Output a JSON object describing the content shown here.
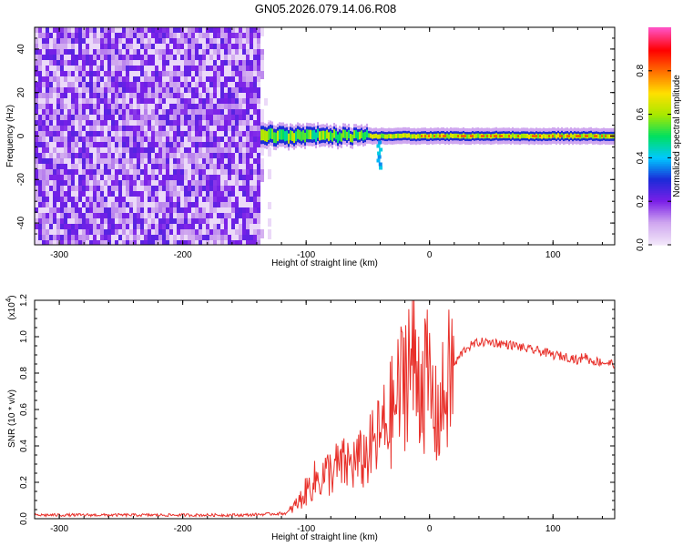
{
  "title": "GN05.2026.079.14.06.R08",
  "chart_data": [
    {
      "type": "heatmap",
      "xlabel": "Height of straight line (km)",
      "ylabel": "Frequency (Hz)",
      "xlim": [
        -320,
        150
      ],
      "ylim": [
        -50,
        50
      ],
      "xticks": [
        -300,
        -200,
        -100,
        0,
        100
      ],
      "yticks": [
        -40,
        -20,
        0,
        20,
        40
      ],
      "colorbar": {
        "label": "Normalized spectral amplitude",
        "range": [
          0,
          1
        ],
        "ticks": [
          0.0,
          0.2,
          0.4,
          0.6,
          0.8
        ],
        "tick_labels": [
          "0.0",
          "0.2",
          "0.4",
          "0.6",
          "0.8"
        ],
        "colormap": [
          "#f2e6fa",
          "#cfa6ef",
          "#7a1fe8",
          "#1b2bd8",
          "#00c8ff",
          "#00e060",
          "#a8e800",
          "#ffe000",
          "#ff7000",
          "#ff0000",
          "#ff50c0"
        ]
      },
      "regions": [
        {
          "x": [
            -320,
            -137
          ],
          "description_level": 0.1
        },
        {
          "x": [
            -137,
            150
          ],
          "ridge_frequency_hz": 0,
          "ridge_level": 0.55
        }
      ]
    },
    {
      "type": "line",
      "xlabel": "Height of straight line (km)",
      "ylabel": "SNR (10 * v/v)",
      "multiplier": "(x10",
      "multiplier_exp": "4",
      "xlim": [
        -320,
        150
      ],
      "ylim": [
        0,
        1.2
      ],
      "xticks": [
        -300,
        -200,
        -100,
        0,
        100
      ],
      "yticks": [
        0.0,
        0.2,
        0.4,
        0.6,
        0.8,
        1.0,
        1.2
      ],
      "ytick_labels": [
        "0.0",
        "0.2",
        "0.4",
        "0.6",
        "0.8",
        "1.0",
        "1.2"
      ],
      "series": [
        {
          "color": "#e8302a",
          "x": [
            -320,
            -250,
            -150,
            -115,
            -105,
            -95,
            -85,
            -75,
            -65,
            -55,
            -45,
            -35,
            -28,
            -22,
            -18,
            -12,
            -5,
            0,
            5,
            10,
            15,
            20,
            25,
            30,
            40,
            50,
            60,
            70,
            80,
            90,
            100,
            110,
            118,
            120,
            125,
            130,
            140,
            150
          ],
          "y": [
            0.02,
            0.02,
            0.02,
            0.03,
            0.1,
            0.2,
            0.24,
            0.28,
            0.3,
            0.32,
            0.4,
            0.52,
            0.62,
            0.74,
            0.9,
            0.82,
            0.78,
            0.72,
            0.55,
            0.62,
            0.74,
            0.84,
            0.9,
            0.94,
            0.97,
            0.97,
            0.96,
            0.95,
            0.93,
            0.92,
            0.9,
            0.89,
            0.88,
            0.86,
            0.9,
            0.87,
            0.86,
            0.85
          ]
        }
      ]
    }
  ],
  "colors": {
    "line": "#e8302a",
    "frame": "#000000",
    "background": "#ffffff"
  }
}
